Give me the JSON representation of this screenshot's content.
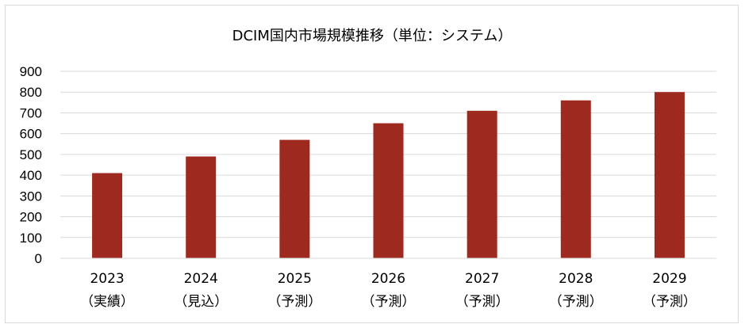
{
  "chart_data": {
    "type": "bar",
    "title": "DCIM国内市場規模推移（単位：システム）",
    "categories": [
      {
        "year": "2023",
        "note": "（実績）"
      },
      {
        "year": "2024",
        "note": "（見込）"
      },
      {
        "year": "2025",
        "note": "（予測）"
      },
      {
        "year": "2026",
        "note": "（予測）"
      },
      {
        "year": "2027",
        "note": "（予測）"
      },
      {
        "year": "2028",
        "note": "（予測）"
      },
      {
        "year": "2029",
        "note": "（予測）"
      }
    ],
    "values": [
      410,
      490,
      570,
      650,
      710,
      760,
      800
    ],
    "ylim": [
      0,
      900
    ],
    "yticks": [
      0,
      100,
      200,
      300,
      400,
      500,
      600,
      700,
      800,
      900
    ],
    "grid": true,
    "colors": {
      "bar": "#9e2a1f",
      "grid": "#d9d9d9"
    }
  }
}
